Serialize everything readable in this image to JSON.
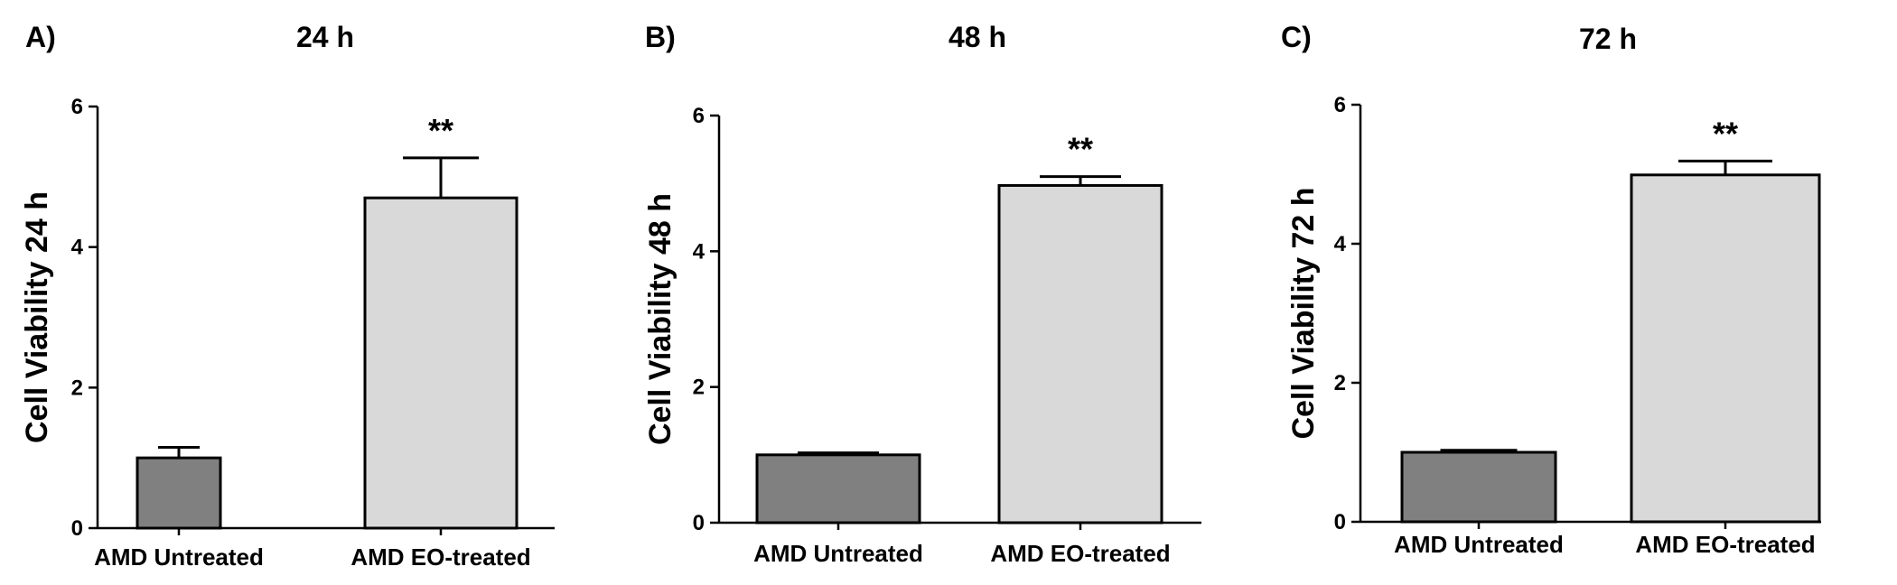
{
  "colors": {
    "untreated_bar": "#808080",
    "treated_bar": "#d9d9d9",
    "outline": "#000000"
  },
  "chart_data": [
    {
      "type": "bar",
      "panel_label": "A)",
      "title": "24 h",
      "xlabel": "",
      "ylabel": "Cell Viability 24 h",
      "categories": [
        "AMD Untreated",
        "AMD EO-treated"
      ],
      "values": [
        1.0,
        4.7
      ],
      "errors": [
        0.15,
        0.57
      ],
      "annotations": [
        "",
        "**"
      ],
      "ylim": [
        0,
        6
      ],
      "yticks": [
        "0",
        "2",
        "4",
        "6"
      ],
      "grid": false
    },
    {
      "type": "bar",
      "panel_label": "B)",
      "title": "48 h",
      "xlabel": "",
      "ylabel": "Cell Viability 48 h",
      "categories": [
        "AMD Untreated",
        "AMD EO-treated"
      ],
      "values": [
        1.0,
        4.97
      ],
      "errors": [
        0.03,
        0.13
      ],
      "annotations": [
        "",
        "**"
      ],
      "ylim": [
        0,
        6
      ],
      "yticks": [
        "0",
        "2",
        "4",
        "6"
      ],
      "grid": false
    },
    {
      "type": "bar",
      "panel_label": "C)",
      "title": "72 h",
      "xlabel": "",
      "ylabel": "Cell Viability 72 h",
      "categories": [
        "AMD Untreated",
        "AMD EO-treated"
      ],
      "values": [
        1.0,
        4.99
      ],
      "errors": [
        0.03,
        0.2
      ],
      "annotations": [
        "",
        "**"
      ],
      "ylim": [
        0,
        6
      ],
      "yticks": [
        "0",
        "2",
        "4",
        "6"
      ],
      "grid": false
    }
  ]
}
